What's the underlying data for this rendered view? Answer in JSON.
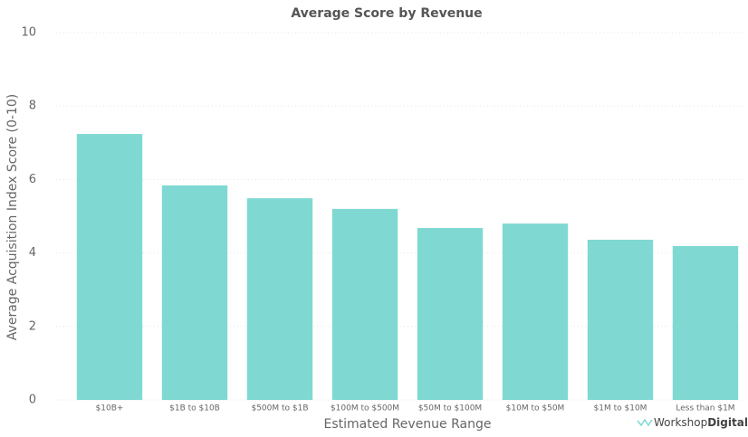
{
  "chart_data": {
    "type": "bar",
    "title": "Average Score by Revenue",
    "x_label": "Estimated Revenue Range",
    "y_label": "Average Acquisition Index Score (0-10)",
    "categories": [
      "$10B+",
      "$1B to $10B",
      "$500M to $1B",
      "$100M to $500M",
      "$50M to $100M",
      "$10M to $50M",
      "$1M to $10M",
      "Less than $1M"
    ],
    "values": [
      7.24,
      5.84,
      5.49,
      5.2,
      4.68,
      4.8,
      4.36,
      4.19
    ],
    "color": "#7fd9d2",
    "ylim": [
      0,
      10
    ],
    "yticks": [
      0,
      2,
      4,
      6,
      8,
      10
    ],
    "grid": true
  },
  "logo": {
    "light": "Workshop",
    "bold": "Digital"
  }
}
